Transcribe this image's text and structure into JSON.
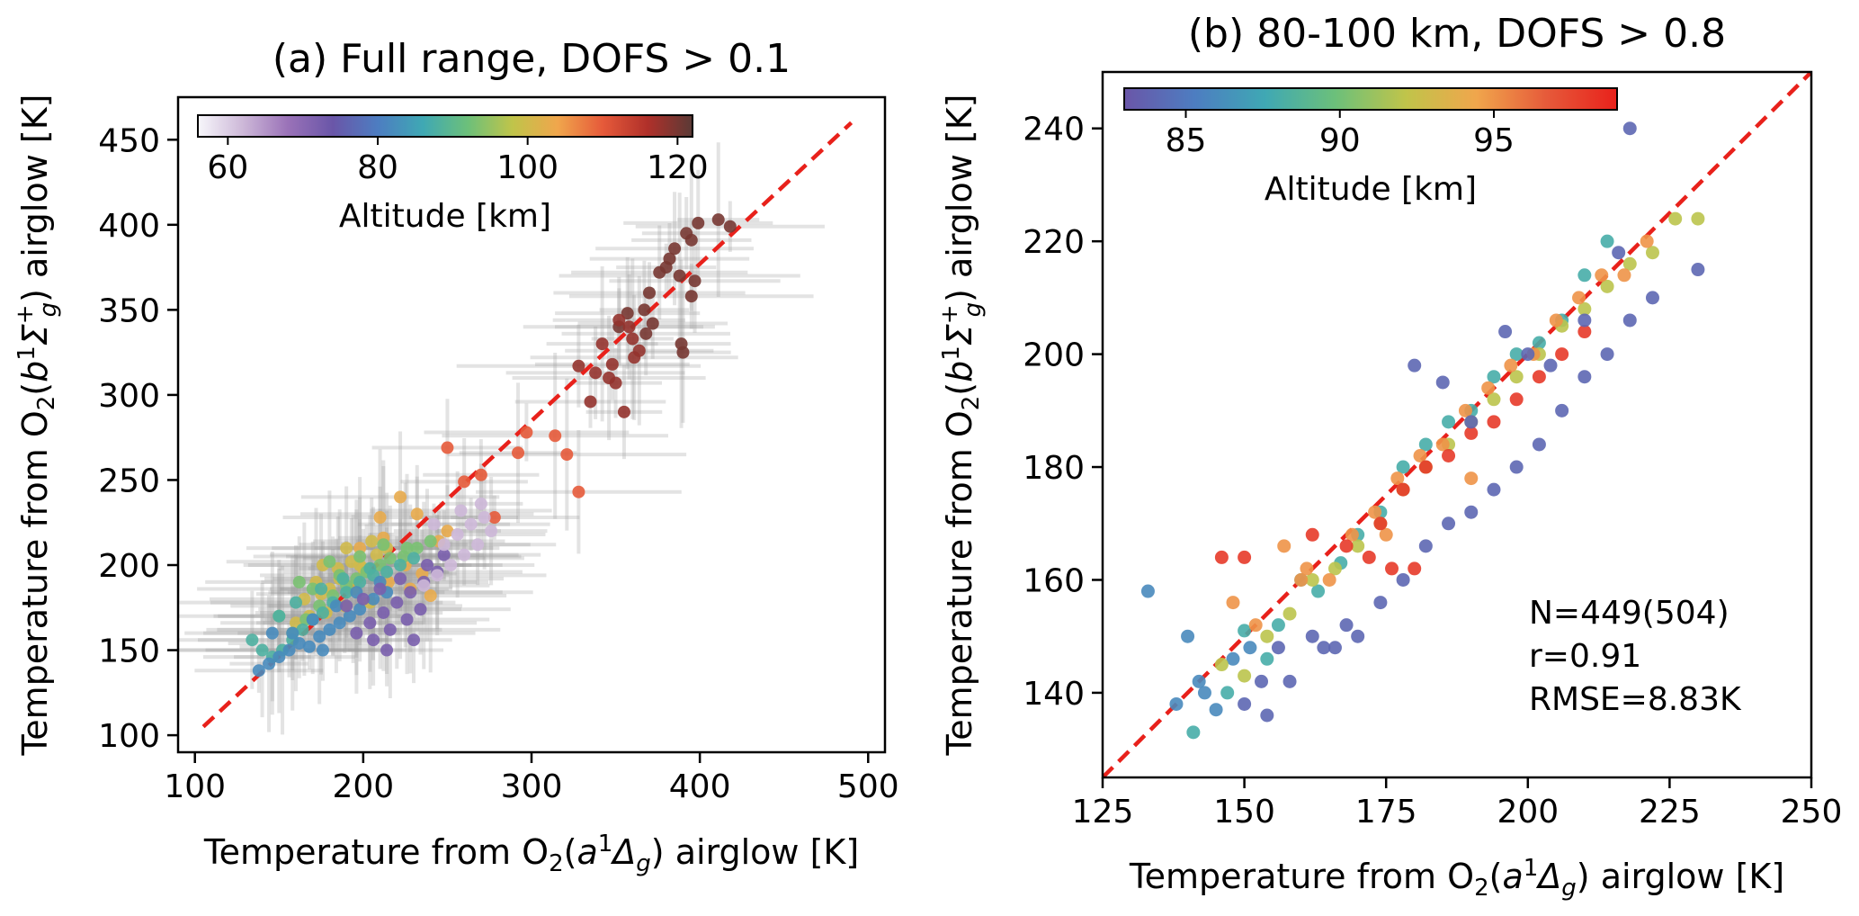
{
  "chart_data": [
    {
      "type": "scatter",
      "title": "(a) Full range, DOFS > 0.1",
      "xlabel_parts": [
        "Temperature from O",
        "2",
        "(",
        "a",
        "1",
        "Δ",
        "g",
        ") airglow [K]"
      ],
      "ylabel_parts": [
        "Temperature from O",
        "2",
        "(",
        "b",
        "1",
        "Σ",
        "+",
        "g",
        ") airglow [K]"
      ],
      "xlim": [
        90,
        510
      ],
      "ylim": [
        90,
        475
      ],
      "xticks": [
        100,
        200,
        300,
        400,
        500
      ],
      "yticks": [
        100,
        150,
        200,
        250,
        300,
        350,
        400,
        450
      ],
      "reference_line": {
        "style": "dashed",
        "color": "#e8211b",
        "from": [
          105,
          105
        ],
        "to": [
          490,
          460
        ]
      },
      "colorbar": {
        "label": "Altitude [km]",
        "ticks": [
          60,
          80,
          100,
          120
        ],
        "range": [
          56,
          122
        ],
        "colormap": [
          "#f7f7fb",
          "#cdb8d8",
          "#9a72b8",
          "#6a56a8",
          "#4d7dc1",
          "#3fa8b4",
          "#6cc07a",
          "#c0c44a",
          "#f0a64c",
          "#e65a3a",
          "#b0302a",
          "#5a3a36"
        ]
      },
      "series": [
        {
          "x": [
            385,
            392,
            399,
            411,
            376,
            395,
            418,
            382,
            370,
            397,
            380,
            388,
            367,
            395,
            357,
            352,
            389,
            372,
            368,
            390
          ],
          "y": [
            386,
            395,
            401,
            403,
            372,
            391,
            399,
            380,
            360,
            367,
            375,
            370,
            350,
            358,
            348,
            340,
            330,
            342,
            336,
            325
          ],
          "altitude": 120
        },
        {
          "x": [
            352,
            360,
            342,
            348,
            338,
            361,
            350,
            335,
            355,
            346,
            328,
            358,
            364
          ],
          "y": [
            344,
            333,
            330,
            318,
            313,
            322,
            307,
            296,
            290,
            310,
            317,
            340,
            326
          ],
          "altitude": 118
        },
        {
          "x": [
            250,
            270,
            297,
            292,
            314,
            321,
            328,
            278,
            260
          ],
          "y": [
            269,
            253,
            278,
            266,
            276,
            265,
            243,
            228,
            249
          ],
          "altitude": 110
        },
        {
          "x": [
            250,
            210,
            225,
            235,
            215,
            228,
            240,
            198,
            212,
            232,
            245,
            222
          ],
          "y": [
            220,
            228,
            200,
            195,
            190,
            186,
            182,
            210,
            216,
            230,
            214,
            240
          ],
          "altitude": 103
        },
        {
          "x": [
            165,
            172,
            180,
            186,
            194,
            198,
            176,
            185,
            193,
            200,
            208,
            214,
            168,
            178,
            189,
            204,
            160,
            175,
            190,
            205
          ],
          "y": [
            180,
            190,
            186,
            192,
            186,
            200,
            200,
            198,
            202,
            198,
            206,
            210,
            170,
            172,
            176,
            178,
            166,
            183,
            210,
            214
          ],
          "altitude": 100
        },
        {
          "x": [
            158,
            166,
            174,
            182,
            190,
            196,
            202,
            210,
            216,
            224,
            232,
            170,
            186,
            198,
            212,
            226,
            240,
            150,
            162,
            180
          ],
          "y": [
            160,
            168,
            176,
            182,
            188,
            192,
            196,
            200,
            204,
            205,
            210,
            186,
            194,
            205,
            212,
            210,
            214,
            170,
            190,
            202
          ],
          "altitude": 93
        },
        {
          "x": [
            134,
            140,
            146,
            152,
            158,
            164,
            170,
            176,
            182,
            190,
            198,
            206,
            214,
            222,
            230,
            150,
            160,
            175,
            188,
            204
          ],
          "y": [
            156,
            150,
            146,
            150,
            156,
            162,
            168,
            172,
            178,
            184,
            190,
            194,
            196,
            200,
            204,
            170,
            178,
            186,
            192,
            198
          ],
          "altitude": 88
        },
        {
          "x": [
            138,
            144,
            150,
            156,
            162,
            168,
            174,
            180,
            186,
            192,
            198,
            206,
            214,
            146,
            158,
            170,
            184,
            196,
            210,
            176
          ],
          "y": [
            138,
            142,
            146,
            150,
            154,
            152,
            158,
            162,
            166,
            170,
            174,
            180,
            184,
            160,
            160,
            168,
            176,
            184,
            190,
            150
          ],
          "altitude": 82
        },
        {
          "x": [
            196,
            204,
            212,
            220,
            228,
            236,
            244,
            206,
            216,
            226,
            234,
            200,
            210,
            222,
            238,
            248,
            190,
            214,
            230
          ],
          "y": [
            160,
            166,
            172,
            178,
            184,
            190,
            196,
            156,
            162,
            168,
            174,
            180,
            186,
            192,
            200,
            206,
            176,
            150,
            156
          ],
          "altitude": 72
        },
        {
          "x": [
            236,
            244,
            252,
            260,
            268,
            276,
            248,
            256,
            264,
            272,
            242,
            258,
            270
          ],
          "y": [
            188,
            194,
            200,
            206,
            212,
            220,
            212,
            218,
            224,
            228,
            224,
            232,
            236
          ],
          "altitude": 62
        }
      ]
    },
    {
      "type": "scatter",
      "title": "(b) 80-100 km, DOFS > 0.8",
      "xlabel_parts": [
        "Temperature from O",
        "2",
        "(",
        "a",
        "1",
        "Δ",
        "g",
        ") airglow [K]"
      ],
      "ylabel_parts": [
        "Temperature from O",
        "2",
        "(",
        "b",
        "1",
        "Σ",
        "+",
        "g",
        ") airglow [K]"
      ],
      "xlim": [
        125,
        250
      ],
      "ylim": [
        125,
        250
      ],
      "xticks": [
        125,
        150,
        175,
        200,
        225,
        250
      ],
      "yticks": [
        140,
        160,
        180,
        200,
        220,
        240
      ],
      "reference_line": {
        "style": "dashed",
        "color": "#e8211b",
        "from": [
          125,
          125
        ],
        "to": [
          250,
          250
        ]
      },
      "colorbar": {
        "label": "Altitude [km]",
        "ticks": [
          85,
          90,
          95
        ],
        "range": [
          83,
          99
        ],
        "colormap": [
          "#6a56a8",
          "#4d7dc1",
          "#3fa8b4",
          "#6cc07a",
          "#c0c44a",
          "#f0a64c",
          "#e65a3a",
          "#e8211b"
        ]
      },
      "stats": [
        "N=449(504)",
        "r=0.91",
        "RMSE=8.83K"
      ],
      "series": [
        {
          "x": [
            133,
            140,
            142,
            145,
            148,
            151,
            143,
            138
          ],
          "y": [
            158,
            150,
            142,
            137,
            146,
            148,
            140,
            138
          ],
          "altitude": 86
        },
        {
          "x": [
            141,
            147,
            150,
            154,
            156,
            160,
            163,
            167,
            170,
            174,
            178,
            182,
            186,
            190,
            194,
            198,
            202,
            206,
            210,
            214
          ],
          "y": [
            133,
            140,
            151,
            146,
            152,
            160,
            158,
            163,
            168,
            172,
            180,
            184,
            188,
            190,
            196,
            200,
            202,
            206,
            214,
            220
          ],
          "altitude": 88
        },
        {
          "x": [
            146,
            150,
            154,
            158,
            162,
            166,
            170,
            174,
            178,
            182,
            186,
            190,
            194,
            198,
            202,
            206,
            210,
            214,
            218,
            222,
            226,
            230
          ],
          "y": [
            145,
            143,
            150,
            154,
            160,
            162,
            166,
            170,
            176,
            180,
            184,
            188,
            192,
            196,
            200,
            205,
            208,
            212,
            216,
            218,
            224,
            224
          ],
          "altitude": 92
        },
        {
          "x": [
            148,
            152,
            157,
            161,
            165,
            169,
            173,
            177,
            181,
            185,
            189,
            193,
            197,
            201,
            205,
            209,
            213,
            217,
            221,
            160,
            175,
            190
          ],
          "y": [
            156,
            152,
            166,
            162,
            160,
            168,
            172,
            178,
            182,
            184,
            190,
            194,
            198,
            200,
            206,
            210,
            214,
            214,
            220,
            160,
            168,
            178
          ],
          "altitude": 95
        },
        {
          "x": [
            146,
            150,
            162,
            168,
            174,
            178,
            182,
            186,
            190,
            194,
            198,
            202,
            206,
            210,
            180,
            176,
            172
          ],
          "y": [
            164,
            164,
            168,
            166,
            170,
            176,
            180,
            182,
            186,
            188,
            192,
            196,
            200,
            204,
            162,
            162,
            164
          ],
          "altitude": 98
        },
        {
          "x": [
            154,
            158,
            162,
            166,
            170,
            174,
            178,
            182,
            186,
            190,
            194,
            198,
            202,
            206,
            210,
            214,
            218,
            222,
            230,
            164,
            168,
            150,
            153,
            156
          ],
          "y": [
            136,
            142,
            150,
            148,
            150,
            156,
            160,
            166,
            170,
            172,
            176,
            180,
            184,
            190,
            196,
            200,
            206,
            210,
            215,
            148,
            152,
            138,
            142,
            148
          ],
          "altitude": 84
        },
        {
          "x": [
            180,
            185,
            190,
            196,
            200,
            204,
            210,
            216,
            218
          ],
          "y": [
            198,
            195,
            188,
            204,
            200,
            198,
            206,
            218,
            240
          ],
          "altitude": 84
        }
      ]
    }
  ]
}
